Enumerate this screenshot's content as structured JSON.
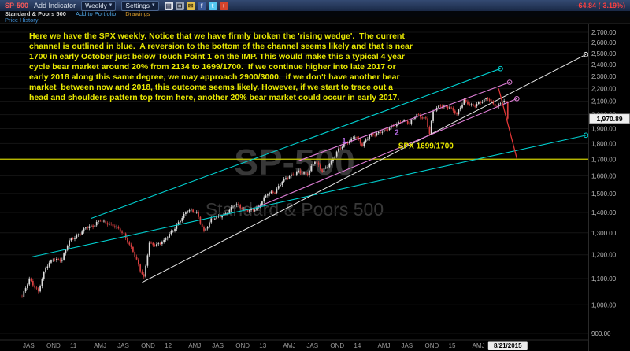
{
  "toolbar": {
    "symbol": "SP-500",
    "symbol_color": "#ff5a5a",
    "add_indicator": "Add Indicator",
    "timeframe": "Weekly",
    "settings": "Settings",
    "icons": [
      {
        "name": "document-icon",
        "glyph": "▤",
        "bg": "#dfe3ea",
        "fg": "#39415a"
      },
      {
        "name": "print-icon",
        "glyph": "⊟",
        "bg": "#9aa4b4",
        "fg": "#1c2230"
      },
      {
        "name": "email-icon",
        "glyph": "✉",
        "bg": "#e3c04a",
        "fg": "#4f3d0c"
      },
      {
        "name": "facebook-icon",
        "glyph": "f",
        "bg": "#3b5998",
        "fg": "#ffffff"
      },
      {
        "name": "twitter-icon",
        "glyph": "t",
        "bg": "#55c8f0",
        "fg": "#ffffff"
      },
      {
        "name": "share-icon",
        "glyph": "+",
        "bg": "#d4442c",
        "fg": "#ffffff"
      }
    ],
    "change_text": "-64.84 (-3.19%)",
    "change_color": "#ff4040"
  },
  "subheader": {
    "security_name": "Standard & Poors 500",
    "add_to_portfolio": "Add to Portfolio",
    "add_to_portfolio_color": "#4fa3e0",
    "drawings": "Drawings",
    "drawings_color": "#d79b2a"
  },
  "indicator_row": {
    "price_history": "Price History",
    "price_history_color": "#3f8fd6"
  },
  "annotation": {
    "text": "Here we have the SPX weekly. Notice that we have firmly broken the 'rising wedge'.  The current\nchannel is outlined in blue.  A reversion to the bottom of the channel seems likely and that is near\n1700 in early October just below Touch Point 1 on the IMP. This would make this a typical 4 year\ncycle bear market around 20% from 2134 to 1699/1700.  If we continue higher into late 2017 or\nearly 2018 along this same degree, we may approach 2900/3000.  if we don't have another bear\nmarket  between now and 2018, this outcome seems likely. However, if we start to trace out a\nhead and shoulders pattern top from here, another 20% bear market could occur in early 2017."
  },
  "watermark": {
    "line1": "SP-500",
    "line2": "Standard & Poors 500"
  },
  "chart_data": {
    "type": "candlestick",
    "symbol": "SP-500",
    "timeframe": "Weekly",
    "yscale": "log",
    "ylim": [
      900,
      2700
    ],
    "price_axis_ticks": [
      2700,
      2600,
      2500,
      2400,
      2300,
      2200,
      2100,
      2000,
      1900,
      1800,
      1700,
      1600,
      1500,
      1400,
      1300,
      1200,
      1100,
      1000,
      900
    ],
    "x_unit": "weeks from Jul 2010",
    "quarter_labels": [
      "JAS",
      "OND",
      "11",
      "AMJ",
      "JAS",
      "OND",
      "12",
      "AMJ",
      "JAS",
      "OND",
      "13",
      "AMJ",
      "JAS",
      "OND",
      "14",
      "AMJ",
      "JAS",
      "OND",
      "15",
      "AMJ"
    ],
    "last_date": "8/21/2015",
    "last_close": 1970.89,
    "up_color": "#dcdcdc",
    "down_color": "#d94040",
    "anchors": [
      [
        0,
        1025
      ],
      [
        4,
        1101
      ],
      [
        9,
        1049
      ],
      [
        13,
        1141
      ],
      [
        17,
        1183
      ],
      [
        22,
        1180
      ],
      [
        26,
        1258
      ],
      [
        30,
        1286
      ],
      [
        35,
        1327
      ],
      [
        39,
        1326
      ],
      [
        43,
        1364
      ],
      [
        48,
        1345
      ],
      [
        52,
        1321
      ],
      [
        56,
        1292
      ],
      [
        61,
        1219
      ],
      [
        65,
        1131
      ],
      [
        67,
        1100
      ],
      [
        70,
        1253
      ],
      [
        74,
        1247
      ],
      [
        78,
        1258
      ],
      [
        83,
        1312
      ],
      [
        87,
        1366
      ],
      [
        91,
        1408
      ],
      [
        96,
        1398
      ],
      [
        100,
        1310
      ],
      [
        104,
        1362
      ],
      [
        109,
        1379
      ],
      [
        113,
        1407
      ],
      [
        117,
        1441
      ],
      [
        122,
        1412
      ],
      [
        126,
        1416
      ],
      [
        130,
        1426
      ],
      [
        135,
        1498
      ],
      [
        139,
        1515
      ],
      [
        143,
        1569
      ],
      [
        148,
        1598
      ],
      [
        152,
        1631
      ],
      [
        157,
        1606
      ],
      [
        161,
        1686
      ],
      [
        165,
        1633
      ],
      [
        170,
        1682
      ],
      [
        174,
        1757
      ],
      [
        178,
        1806
      ],
      [
        183,
        1848
      ],
      [
        187,
        1783
      ],
      [
        191,
        1859
      ],
      [
        196,
        1872
      ],
      [
        200,
        1884
      ],
      [
        204,
        1924
      ],
      [
        209,
        1960
      ],
      [
        213,
        1931
      ],
      [
        217,
        2003
      ],
      [
        222,
        1972
      ],
      [
        224,
        1862
      ],
      [
        226,
        2018
      ],
      [
        230,
        2068
      ],
      [
        235,
        2059
      ],
      [
        239,
        1995
      ],
      [
        243,
        2105
      ],
      [
        248,
        2068
      ],
      [
        252,
        2086
      ],
      [
        256,
        2121
      ],
      [
        261,
        2063
      ],
      [
        265,
        2104
      ],
      [
        266,
        2091
      ],
      [
        267,
        1970.89
      ]
    ],
    "drawings": [
      {
        "name": "support-yellow-hline",
        "type": "hline",
        "price": 1700,
        "color": "#cdcd00",
        "width": 1.2
      },
      {
        "name": "trendline-cyan-lower-channel",
        "type": "line",
        "w1": 5,
        "p1": 1190,
        "w2": 310,
        "p2": 1855,
        "color": "#00cfcf",
        "width": 1.1,
        "end_circle": true
      },
      {
        "name": "trendline-cyan-upper-channel",
        "type": "line",
        "w1": 38,
        "p1": 1370,
        "w2": 263,
        "p2": 2365,
        "color": "#00cfcf",
        "width": 1.1,
        "end_circle": true
      },
      {
        "name": "trendline-white-support",
        "type": "line",
        "w1": 66,
        "p1": 1085,
        "w2": 310,
        "p2": 2490,
        "color": "#e8e8e8",
        "width": 1,
        "end_circle": true
      },
      {
        "name": "trendline-wedge-upper",
        "type": "line",
        "w1": 152,
        "p1": 1690,
        "w2": 268,
        "p2": 2250,
        "color": "#e07fd8",
        "width": 1.1,
        "end_circle": true
      },
      {
        "name": "trendline-wedge-lower",
        "type": "line",
        "w1": 130,
        "p1": 1430,
        "w2": 272,
        "p2": 2120,
        "color": "#e07fd8",
        "width": 1.1,
        "end_circle": true
      },
      {
        "name": "projection-red-line",
        "type": "line",
        "w1": 262,
        "p1": 2200,
        "w2": 272,
        "p2": 1705,
        "color": "#e03535",
        "width": 1.3,
        "end_circle": false
      }
    ],
    "text_labels": [
      {
        "name": "spx-target-label",
        "text": "SPX 1699/1700",
        "week": 222,
        "price": 1768,
        "color": "#e8e800",
        "size": 10
      },
      {
        "name": "touch-point-1",
        "text": "1",
        "week": 177,
        "price": 1802,
        "color": "#b36ae2",
        "size": 10
      },
      {
        "name": "touch-point-2",
        "text": "2",
        "week": 206,
        "price": 1858,
        "color": "#b36ae2",
        "size": 10
      }
    ]
  }
}
